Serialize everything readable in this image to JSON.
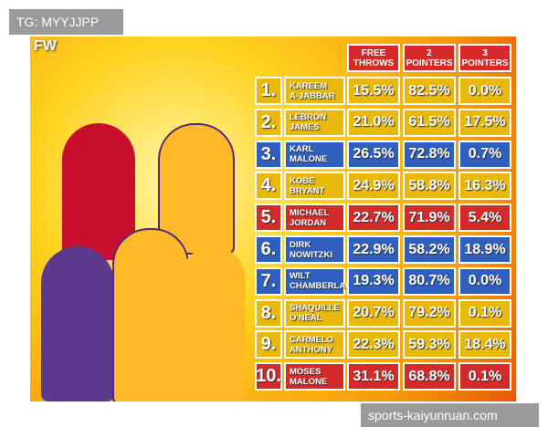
{
  "watermark": "TG: MYYJJPP",
  "logo": "FW",
  "footer": "sports-kaiyunruan.com",
  "headers": [
    [
      "FREE",
      "THROWS"
    ],
    [
      "2",
      "POINTERS"
    ],
    [
      "3",
      "POINTERS"
    ]
  ],
  "rows": [
    {
      "rank": "1.",
      "first": "KAREEM",
      "last": "A-JABBAR",
      "color": "#e8b80c",
      "values": [
        "15.5%",
        "82.5%",
        "0.0%"
      ]
    },
    {
      "rank": "2.",
      "first": "LEBRON",
      "last": "JAMES",
      "color": "#e8b80c",
      "values": [
        "21.0%",
        "61.5%",
        "17.5%"
      ]
    },
    {
      "rank": "3.",
      "first": "KARL",
      "last": "MALONE",
      "color": "#2f5fbf",
      "values": [
        "26.5%",
        "72.8%",
        "0.7%"
      ]
    },
    {
      "rank": "4.",
      "first": "KOBE",
      "last": "BRYANT",
      "color": "#e8b80c",
      "values": [
        "24.9%",
        "58.8%",
        "16.3%"
      ]
    },
    {
      "rank": "5.",
      "first": "MICHAEL",
      "last": "JORDAN",
      "color": "#d42a2a",
      "values": [
        "22.7%",
        "71.9%",
        "5.4%"
      ]
    },
    {
      "rank": "6.",
      "first": "DIRK",
      "last": "NOWITZKI",
      "color": "#2f5fbf",
      "values": [
        "22.9%",
        "58.2%",
        "18.9%"
      ]
    },
    {
      "rank": "7.",
      "first": "WILT",
      "last": "CHAMBERLAIN",
      "color": "#2f5fbf",
      "values": [
        "19.3%",
        "80.7%",
        "0.0%"
      ]
    },
    {
      "rank": "8.",
      "first": "SHAQUILLE",
      "last": "O'NEAL",
      "color": "#e8b80c",
      "values": [
        "20.7%",
        "79.2%",
        "0.1%"
      ]
    },
    {
      "rank": "9.",
      "first": "CARMELO",
      "last": "ANTHONY",
      "color": "#e8b80c",
      "values": [
        "22.3%",
        "59.3%",
        "18.4%"
      ]
    },
    {
      "rank": "10.",
      "first": "MOSES",
      "last": "MALONE",
      "color": "#d42a2a",
      "values": [
        "31.1%",
        "68.8%",
        "0.1%"
      ]
    }
  ]
}
